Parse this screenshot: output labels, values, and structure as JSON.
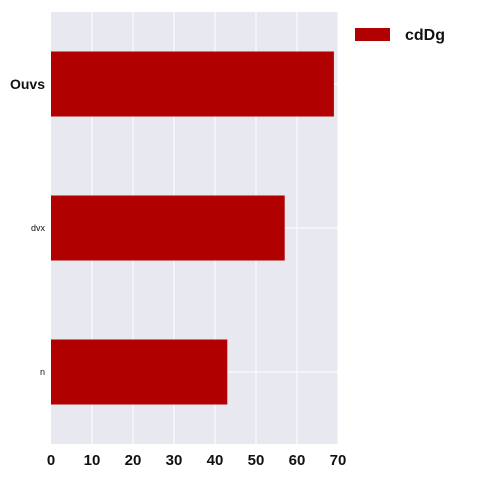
{
  "chart_data": {
    "type": "bar",
    "orientation": "horizontal",
    "categories": [
      "Ouvs",
      "dvx",
      "n"
    ],
    "series": [
      {
        "name": "cdDg",
        "values": [
          69,
          57,
          43
        ],
        "color": "#b00000"
      }
    ],
    "xlim": [
      0,
      70
    ],
    "xticks": [
      0,
      10,
      20,
      30,
      40,
      50,
      60,
      70
    ],
    "grid": true,
    "background": "#e8e8f0",
    "legend": "top-right"
  }
}
